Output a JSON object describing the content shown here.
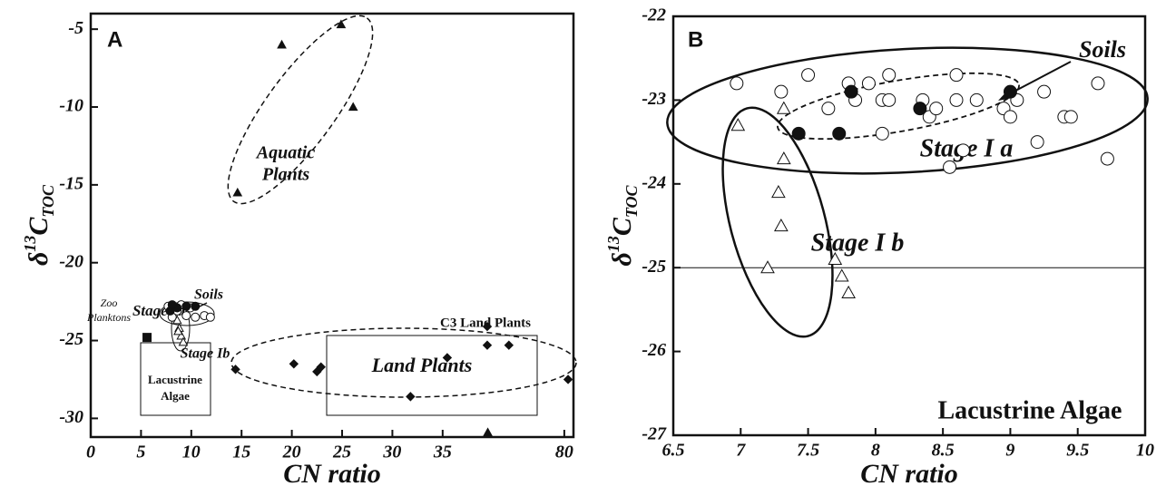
{
  "chart_data": [
    {
      "type": "scatter",
      "x_broken": true,
      "xlabel": "CN ratio",
      "ylabel": [
        "δ",
        "13",
        "C",
        "TOC"
      ],
      "xlim": [
        0,
        83.4
      ],
      "ylim": [
        -31.2,
        -4
      ],
      "xticks": [
        0,
        5,
        10,
        15,
        20,
        25,
        30,
        35,
        80
      ],
      "yticks": [
        -5,
        -10,
        -15,
        -20,
        -25,
        -30
      ],
      "annotations": [
        "A",
        [
          "Aquatic",
          "Plants"
        ],
        "Land Plants",
        "C3 Land Plants",
        "Soils",
        "Stage Ia",
        [
          "Zoo",
          "Planktons"
        ],
        "Stage Ib",
        [
          "Lacustrine",
          "Algae"
        ]
      ],
      "series": [
        {
          "marker": "triangle",
          "color": "#111111",
          "x": [
            19.0,
            24.9,
            26.1,
            14.6
          ],
          "values": [
            -6.0,
            -4.7,
            -10.0,
            -15.5
          ]
        },
        {
          "marker": "diamond",
          "color": "#111111",
          "x": [
            14.4,
            20.2,
            22.5,
            22.9,
            31.8,
            36.7,
            51.5,
            51.5,
            59.5,
            81.4
          ],
          "values": [
            -26.85,
            -26.5,
            -27.0,
            -26.7,
            -28.6,
            -26.1,
            -24.1,
            -25.3,
            -25.3,
            -27.5
          ]
        },
        {
          "marker": "triangle",
          "color": "#111111",
          "x": [
            51.7
          ],
          "values": [
            -30.9
          ]
        },
        {
          "marker": "square",
          "color": "#111111",
          "x": [
            5.6
          ],
          "values": [
            -24.8
          ]
        },
        {
          "marker": "circle-open",
          "color": "#111111",
          "x": [
            7.7,
            8.6,
            9.5,
            10.4,
            11.3,
            11.9,
            8.1,
            9.0,
            9.9
          ],
          "values": [
            -22.8,
            -23.1,
            -23.4,
            -23.5,
            -23.4,
            -23.5,
            -23.5,
            -22.7,
            -22.9
          ]
        },
        {
          "marker": "circle-filled",
          "color": "#111111",
          "x": [
            7.9,
            8.6,
            9.5,
            10.4,
            8.1
          ],
          "values": [
            -23.1,
            -22.9,
            -22.8,
            -22.8,
            -22.7
          ]
        },
        {
          "marker": "triangle-open",
          "color": "#111111",
          "x": [
            8.6,
            8.8,
            9.0,
            9.2,
            8.7
          ],
          "values": [
            -23.7,
            -24.2,
            -24.7,
            -25.1,
            -24.4
          ]
        }
      ]
    },
    {
      "type": "scatter",
      "x_broken": false,
      "xlabel": "CN ratio",
      "ylabel": [
        "δ",
        "13",
        "C",
        "TOC"
      ],
      "xlim": [
        6.5,
        10
      ],
      "ylim": [
        -27,
        -22
      ],
      "xticks": [
        6.5,
        7,
        7.5,
        8,
        8.5,
        9,
        9.5,
        10
      ],
      "yticks": [
        -22,
        -23,
        -24,
        -25,
        -26,
        -27
      ],
      "hline": -25,
      "annotations": [
        "B",
        "Soils",
        "Stage I a",
        "Stage I b",
        "Lacustrine Algae"
      ],
      "series": [
        {
          "marker": "circle-open",
          "color": "#111111",
          "x": [
            6.97,
            7.3,
            7.5,
            7.65,
            7.8,
            7.85,
            7.95,
            8.05,
            8.1,
            8.1,
            8.05,
            8.35,
            8.4,
            8.45,
            8.55,
            8.6,
            8.6,
            8.65,
            8.75,
            8.95,
            9.0,
            9.05,
            9.2,
            9.25,
            9.4,
            9.45,
            9.65,
            9.72
          ],
          "values": [
            -22.8,
            -22.9,
            -22.7,
            -23.1,
            -22.8,
            -23.0,
            -22.8,
            -23.0,
            -22.7,
            -23.0,
            -23.4,
            -23.0,
            -23.2,
            -23.1,
            -23.8,
            -22.7,
            -23.0,
            -23.6,
            -23.0,
            -23.1,
            -23.2,
            -23.0,
            -23.5,
            -22.9,
            -23.2,
            -23.2,
            -22.8,
            -23.7
          ]
        },
        {
          "marker": "circle-filled",
          "color": "#111111",
          "x": [
            7.43,
            7.73,
            7.82,
            8.33,
            9.0
          ],
          "values": [
            -23.4,
            -23.4,
            -22.9,
            -23.1,
            -22.9
          ]
        },
        {
          "marker": "triangle-open",
          "color": "#111111",
          "x": [
            6.98,
            7.32,
            7.32,
            7.28,
            7.3,
            7.2,
            7.7,
            7.75,
            7.8
          ],
          "values": [
            -23.3,
            -23.1,
            -23.7,
            -24.1,
            -24.5,
            -25.0,
            -24.9,
            -25.1,
            -25.3
          ]
        }
      ]
    }
  ]
}
